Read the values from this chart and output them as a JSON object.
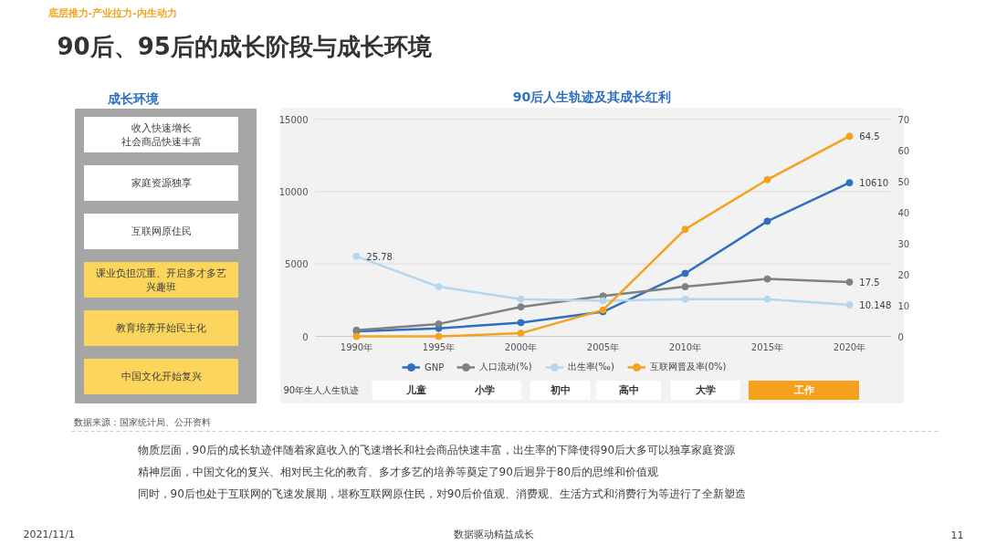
{
  "chart_data": {
    "type": "line",
    "title": "90后、95后的成长阶段与成长环境",
    "subtitle": "90后人生轨迹及其成长红利",
    "categories": [
      "1990年",
      "1995年",
      "2000年",
      "2005年",
      "2010年",
      "2015年",
      "2020年"
    ],
    "series": [
      {
        "name": "GNP",
        "color": "#2f6fbf",
        "values": [
          350,
          550,
          950,
          1700,
          4350,
          7950,
          10610
        ],
        "value_labels": [
          null,
          null,
          null,
          null,
          null,
          null,
          "10610"
        ]
      },
      {
        "name": "人口流动(%)",
        "color": "#808080",
        "axis": "y2",
        "values": [
          2,
          4,
          9.5,
          13,
          16,
          18.5,
          17.5
        ],
        "value_labels": [
          null,
          null,
          null,
          null,
          null,
          null,
          "17.5"
        ]
      },
      {
        "name": "出生率(‰)",
        "color": "#b4d6ef",
        "axis": "y2",
        "values": [
          25.78,
          16,
          12,
          11.5,
          12,
          12,
          10.148
        ],
        "value_labels": [
          "25.78",
          null,
          null,
          null,
          null,
          null,
          "10.148"
        ]
      },
      {
        "name": "互联网普及率(0%)",
        "color": "#f4a21d",
        "axis": "y2",
        "values": [
          0,
          0,
          1,
          8.5,
          34.5,
          50.5,
          64.5
        ],
        "value_labels": [
          null,
          null,
          null,
          null,
          null,
          null,
          "64.5"
        ]
      }
    ],
    "ylim": [
      0,
      15000
    ],
    "yticks": [
      0,
      5000,
      10000,
      15000
    ],
    "y2lim": [
      0,
      70
    ],
    "y2ticks": [
      0,
      10,
      20,
      30,
      40,
      50,
      60,
      70
    ],
    "grid": "y",
    "legend": "bottom",
    "marker": "circle",
    "line_style": "solid",
    "annotations": [
      "底层推力-产业拉力-内生动力",
      "成长环境",
      "收入快速增长",
      "社会商品快速丰富",
      "家庭资源独享",
      "互联网原住民",
      "课业负担沉重、开启多才多艺",
      "兴趣班",
      "教育培养开始民主化",
      "中国文化开始复兴",
      "90年生人人生轨迹",
      "儿童",
      "小学",
      "初中",
      "高中",
      "大学",
      "工作",
      "数据来源：国家统计局、公开资料",
      "物质层面，90后的成长轨迹伴随着家庭收入的飞速增长和社会商品快速丰富，出生率的下降使得90后大多可以独享家庭资源",
      "精神层面，中国文化的复兴、相对民主化的教育、多才多艺的培养等奠定了90后迥异于80后的思维和价值观",
      "同时，90后也处于互联网的飞速发展期，堪称互联网原住民，对90后价值观、消费观、生活方式和消费行为等进行了全新塑造",
      "2021/11/1",
      "数据驱动精益成长",
      "11"
    ]
  }
}
